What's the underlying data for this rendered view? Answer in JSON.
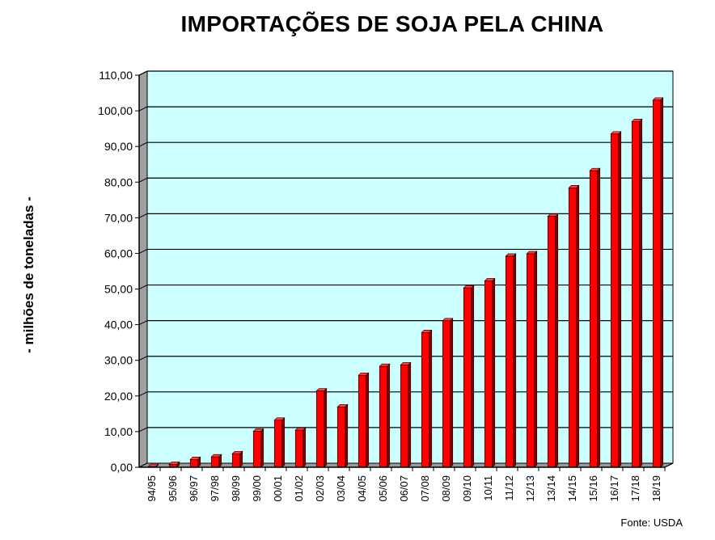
{
  "title": "IMPORTAÇÕES DE SOJA PELA CHINA",
  "source": "Fonte: USDA",
  "chart_data": {
    "type": "bar",
    "title": "IMPORTAÇÕES DE SOJA PELA CHINA",
    "xlabel": "",
    "ylabel": "- milhões de toneladas -",
    "ylim": [
      0,
      110
    ],
    "ytick_step": 10,
    "ytick_format": "comma2",
    "grid": true,
    "legend": "none",
    "bar_color": "#ff0000",
    "bar_side_color": "#8b0000",
    "plot_background": "#ccffff",
    "categories": [
      "94/95",
      "95/96",
      "96/97",
      "97/98",
      "98/99",
      "99/00",
      "00/01",
      "01/02",
      "02/03",
      "03/04",
      "04/05",
      "05/06",
      "06/07",
      "07/08",
      "08/09",
      "09/10",
      "10/11",
      "11/12",
      "12/13",
      "13/14",
      "14/15",
      "15/16",
      "16/17",
      "17/18",
      "18/19"
    ],
    "values": [
      0.2,
      0.8,
      2.2,
      2.9,
      3.8,
      10.1,
      13.2,
      10.4,
      21.4,
      16.9,
      25.8,
      28.3,
      28.7,
      37.8,
      41.1,
      50.3,
      52.3,
      59.2,
      59.9,
      70.4,
      78.4,
      83.2,
      93.5,
      97.0,
      103.0
    ]
  }
}
